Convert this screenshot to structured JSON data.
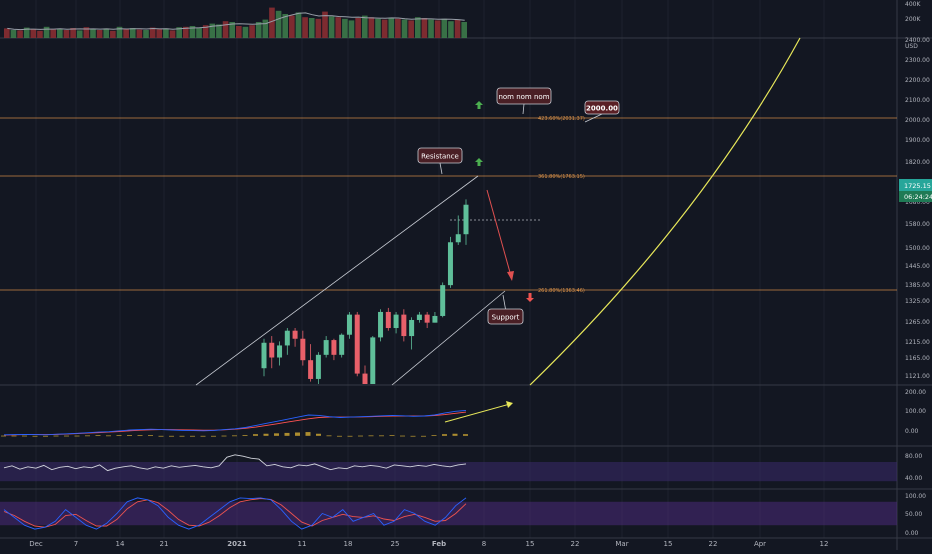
{
  "theme": {
    "bg": "#131722",
    "grid": "#1e222d",
    "axis_line": "#363a45",
    "axis_text": "#b2b5be",
    "up": "#26a69a",
    "up_fill": "#5fbf9a",
    "down": "#ef5350",
    "down_fill": "#e8606a",
    "fib": "#f7a34e",
    "curve": "#e8e85a",
    "macd_line": "#2962ff",
    "signal_line": "#ff5252",
    "hist": "#c8a232",
    "rsi_band": "#3a2a6b",
    "stoch_band": "#4a2a7a"
  },
  "chart_data": [
    {
      "panel": "volume",
      "type": "bar",
      "ytick_labels": [
        "400K",
        "200K"
      ],
      "ylim": [
        0,
        450000
      ],
      "values": [
        120000,
        100000,
        95000,
        130000,
        110000,
        90000,
        140000,
        105000,
        115000,
        100000,
        125000,
        95000,
        135000,
        110000,
        100000,
        120000,
        90000,
        140000,
        115000,
        125000,
        105000,
        100000,
        130000,
        110000,
        120000,
        95000,
        135000,
        140000,
        150000,
        130000,
        160000,
        180000,
        170000,
        210000,
        200000,
        150000,
        140000,
        160000,
        200000,
        230000,
        380000,
        340000,
        300000,
        280000,
        320000,
        260000,
        250000,
        240000,
        330000,
        270000,
        260000,
        240000,
        220000,
        250000,
        280000,
        260000,
        240000,
        230000,
        250000,
        240000,
        230000,
        220000,
        260000,
        250000,
        230000,
        220000,
        240000,
        210000,
        230000,
        200000
      ],
      "colors": [
        "d",
        "u",
        "d",
        "u",
        "d",
        "d",
        "u",
        "d",
        "u",
        "d",
        "d",
        "u",
        "d",
        "u",
        "d",
        "u",
        "d",
        "u",
        "d",
        "u",
        "d",
        "u",
        "d",
        "d",
        "u",
        "d",
        "u",
        "d",
        "u",
        "u",
        "d",
        "u",
        "u",
        "d",
        "u",
        "d",
        "u",
        "d",
        "u",
        "u",
        "d",
        "u",
        "u",
        "d",
        "u",
        "d",
        "u",
        "d",
        "d",
        "u",
        "d",
        "u",
        "u",
        "d",
        "u",
        "d",
        "u",
        "d",
        "u",
        "d",
        "u",
        "d",
        "u",
        "d",
        "u",
        "d",
        "u",
        "u",
        "d",
        "u"
      ]
    },
    {
      "panel": "price",
      "type": "candlestick",
      "ytick_labels": [
        "2400.00",
        "USD",
        "2300.00",
        "2200.00",
        "2100.00",
        "2000.00",
        "1900.00",
        "1820.00",
        "1725.15",
        "06:24:24",
        "1680.00",
        "1580.00",
        "1500.00",
        "1445.00",
        "1385.00",
        "1325.00",
        "1265.00",
        "1215.00",
        "1165.00",
        "1121.00"
      ],
      "ohlc": [
        [
          1150,
          1260,
          1120,
          1245
        ],
        [
          1245,
          1270,
          1150,
          1190
        ],
        [
          1190,
          1250,
          1160,
          1235
        ],
        [
          1235,
          1300,
          1200,
          1290
        ],
        [
          1290,
          1300,
          1230,
          1260
        ],
        [
          1260,
          1290,
          1160,
          1180
        ],
        [
          1180,
          1240,
          1100,
          1110
        ],
        [
          1110,
          1210,
          1090,
          1200
        ],
        [
          1200,
          1270,
          1190,
          1255
        ],
        [
          1255,
          1260,
          1180,
          1200
        ],
        [
          1200,
          1280,
          1190,
          1275
        ],
        [
          1275,
          1360,
          1260,
          1350
        ],
        [
          1350,
          1360,
          1120,
          1130
        ],
        [
          1130,
          1160,
          1030,
          1050
        ],
        [
          1050,
          1270,
          1040,
          1265
        ],
        [
          1265,
          1370,
          1250,
          1360
        ],
        [
          1360,
          1375,
          1290,
          1300
        ],
        [
          1300,
          1360,
          1280,
          1350
        ],
        [
          1350,
          1370,
          1250,
          1270
        ],
        [
          1270,
          1340,
          1220,
          1330
        ],
        [
          1330,
          1360,
          1320,
          1350
        ],
        [
          1350,
          1360,
          1300,
          1320
        ],
        [
          1320,
          1360,
          1320,
          1345
        ],
        [
          1345,
          1470,
          1340,
          1460
        ],
        [
          1460,
          1640,
          1450,
          1620
        ],
        [
          1620,
          1720,
          1610,
          1650
        ],
        [
          1650,
          1780,
          1610,
          1760
        ]
      ],
      "fib_levels": [
        {
          "label": "423.60%(2031.37)",
          "value": 2031.37
        },
        {
          "label": "361.80%(1763.15)",
          "value": 1763.15
        },
        {
          "label": "261.80%(1363.46)",
          "value": 1363.46
        }
      ],
      "dotted_level": 1640,
      "annotations": [
        {
          "text": "nom nom nom"
        },
        {
          "text": "2000.00"
        },
        {
          "text": "Resistance"
        },
        {
          "text": "Support"
        }
      ]
    },
    {
      "panel": "macd",
      "type": "line",
      "ytick_labels": [
        "200.00",
        "100.00",
        "0.00"
      ],
      "ylim": [
        -20,
        220
      ],
      "macd": [
        5,
        6,
        7,
        6,
        5,
        8,
        10,
        12,
        15,
        18,
        20,
        24,
        28,
        30,
        32,
        30,
        28,
        26,
        25,
        24,
        26,
        30,
        34,
        40,
        50,
        60,
        70,
        80,
        90,
        100,
        98,
        92,
        88,
        90,
        92,
        94,
        96,
        98,
        96,
        94,
        95,
        100,
        110,
        118,
        122
      ],
      "signal": [
        4,
        5,
        6,
        6,
        6,
        7,
        9,
        11,
        13,
        15,
        18,
        21,
        24,
        27,
        29,
        30,
        30,
        29,
        28,
        27,
        27,
        29,
        32,
        36,
        42,
        50,
        58,
        66,
        74,
        82,
        88,
        90,
        90,
        90,
        91,
        92,
        94,
        95,
        95,
        95,
        95,
        97,
        102,
        108,
        114
      ],
      "hist": [
        1,
        1,
        1,
        0,
        -1,
        1,
        1,
        1,
        2,
        3,
        2,
        3,
        4,
        3,
        3,
        0,
        -2,
        -3,
        -3,
        -3,
        -1,
        1,
        2,
        4,
        8,
        10,
        12,
        14,
        16,
        18,
        10,
        2,
        -2,
        0,
        1,
        2,
        2,
        3,
        1,
        -1,
        0,
        3,
        8,
        10,
        8
      ]
    },
    {
      "panel": "rsi",
      "type": "line",
      "ytick_labels": [
        "80.00",
        "40.00"
      ],
      "ylim": [
        20,
        95
      ],
      "values": [
        58,
        62,
        55,
        60,
        57,
        63,
        54,
        59,
        61,
        56,
        60,
        58,
        64,
        52,
        57,
        60,
        62,
        58,
        55,
        60,
        57,
        62,
        59,
        61,
        63,
        60,
        58,
        62,
        80,
        85,
        82,
        78,
        76,
        62,
        65,
        60,
        58,
        64,
        62,
        66,
        60,
        54,
        58,
        56,
        62,
        60,
        63,
        61,
        57,
        64,
        62,
        60,
        63,
        61,
        65,
        62,
        60,
        64,
        66
      ]
    },
    {
      "panel": "stoch",
      "type": "line",
      "ytick_labels": [
        "100.00",
        "50.00",
        "0.00"
      ],
      "ylim": [
        -5,
        105
      ],
      "k": [
        60,
        40,
        20,
        10,
        15,
        30,
        60,
        40,
        20,
        10,
        25,
        50,
        80,
        90,
        85,
        70,
        40,
        20,
        10,
        20,
        40,
        60,
        80,
        90,
        88,
        90,
        85,
        60,
        30,
        10,
        20,
        50,
        40,
        60,
        30,
        40,
        50,
        20,
        30,
        60,
        50,
        30,
        20,
        40,
        70,
        90
      ],
      "d": [
        55,
        45,
        30,
        18,
        15,
        22,
        45,
        48,
        32,
        18,
        18,
        35,
        62,
        80,
        85,
        78,
        58,
        35,
        20,
        18,
        28,
        45,
        65,
        80,
        85,
        88,
        86,
        72,
        50,
        28,
        18,
        32,
        40,
        48,
        42,
        40,
        44,
        36,
        32,
        42,
        48,
        40,
        30,
        32,
        50,
        75
      ]
    }
  ],
  "x_axis": {
    "labels": [
      "Dec",
      "7",
      "14",
      "21",
      "2021",
      "11",
      "18",
      "25",
      "Feb",
      "8",
      "15",
      "22",
      "Mar",
      "15",
      "22",
      "Apr",
      "12"
    ]
  }
}
